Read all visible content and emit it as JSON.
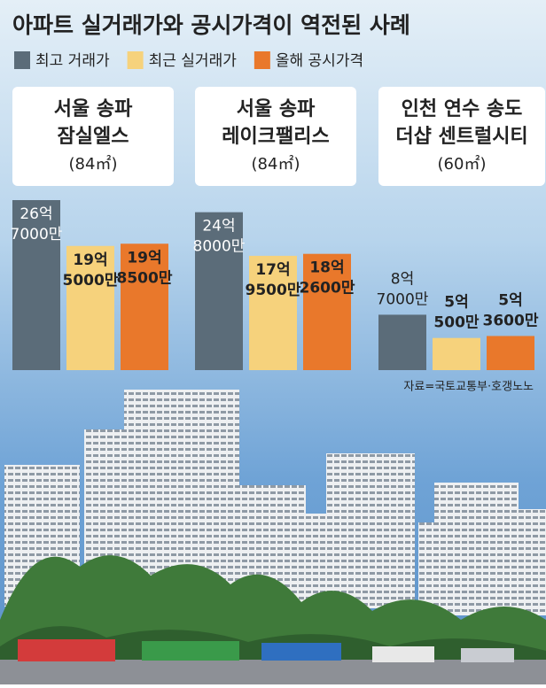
{
  "chart_data": {
    "type": "bar",
    "title": "아파트 실거래가와 공시가격이 역전된 사례",
    "categories": [
      [
        "서울 송파",
        "잠실엘스",
        "(84㎡)"
      ],
      [
        "서울 송파",
        "레이크팰리스",
        "(84㎡)"
      ],
      [
        "인천 연수 송도",
        "더샵 센트럴시티",
        "(60㎡)"
      ]
    ],
    "series": [
      {
        "name": "최고 거래가",
        "color": "#5b6c79",
        "values": [
          267000,
          248000,
          87000
        ],
        "value_labels": [
          [
            "26억",
            "7000만"
          ],
          [
            "24억",
            "8000만"
          ],
          [
            "8억",
            "7000만"
          ]
        ]
      },
      {
        "name": "최근 실거래가",
        "color": "#f6d27c",
        "values": [
          195000,
          179500,
          50500
        ],
        "value_labels": [
          [
            "19억",
            "5000만"
          ],
          [
            "17억",
            "9500만"
          ],
          [
            "5억",
            "500만"
          ]
        ]
      },
      {
        "name": "올해 공시가격",
        "color": "#e9782b",
        "values": [
          198500,
          182600,
          53600
        ],
        "value_labels": [
          [
            "19억",
            "8500만"
          ],
          [
            "18억",
            "2600만"
          ],
          [
            "5억",
            "3600만"
          ]
        ]
      }
    ],
    "source": "자료=국토교통부·호갱노노"
  }
}
